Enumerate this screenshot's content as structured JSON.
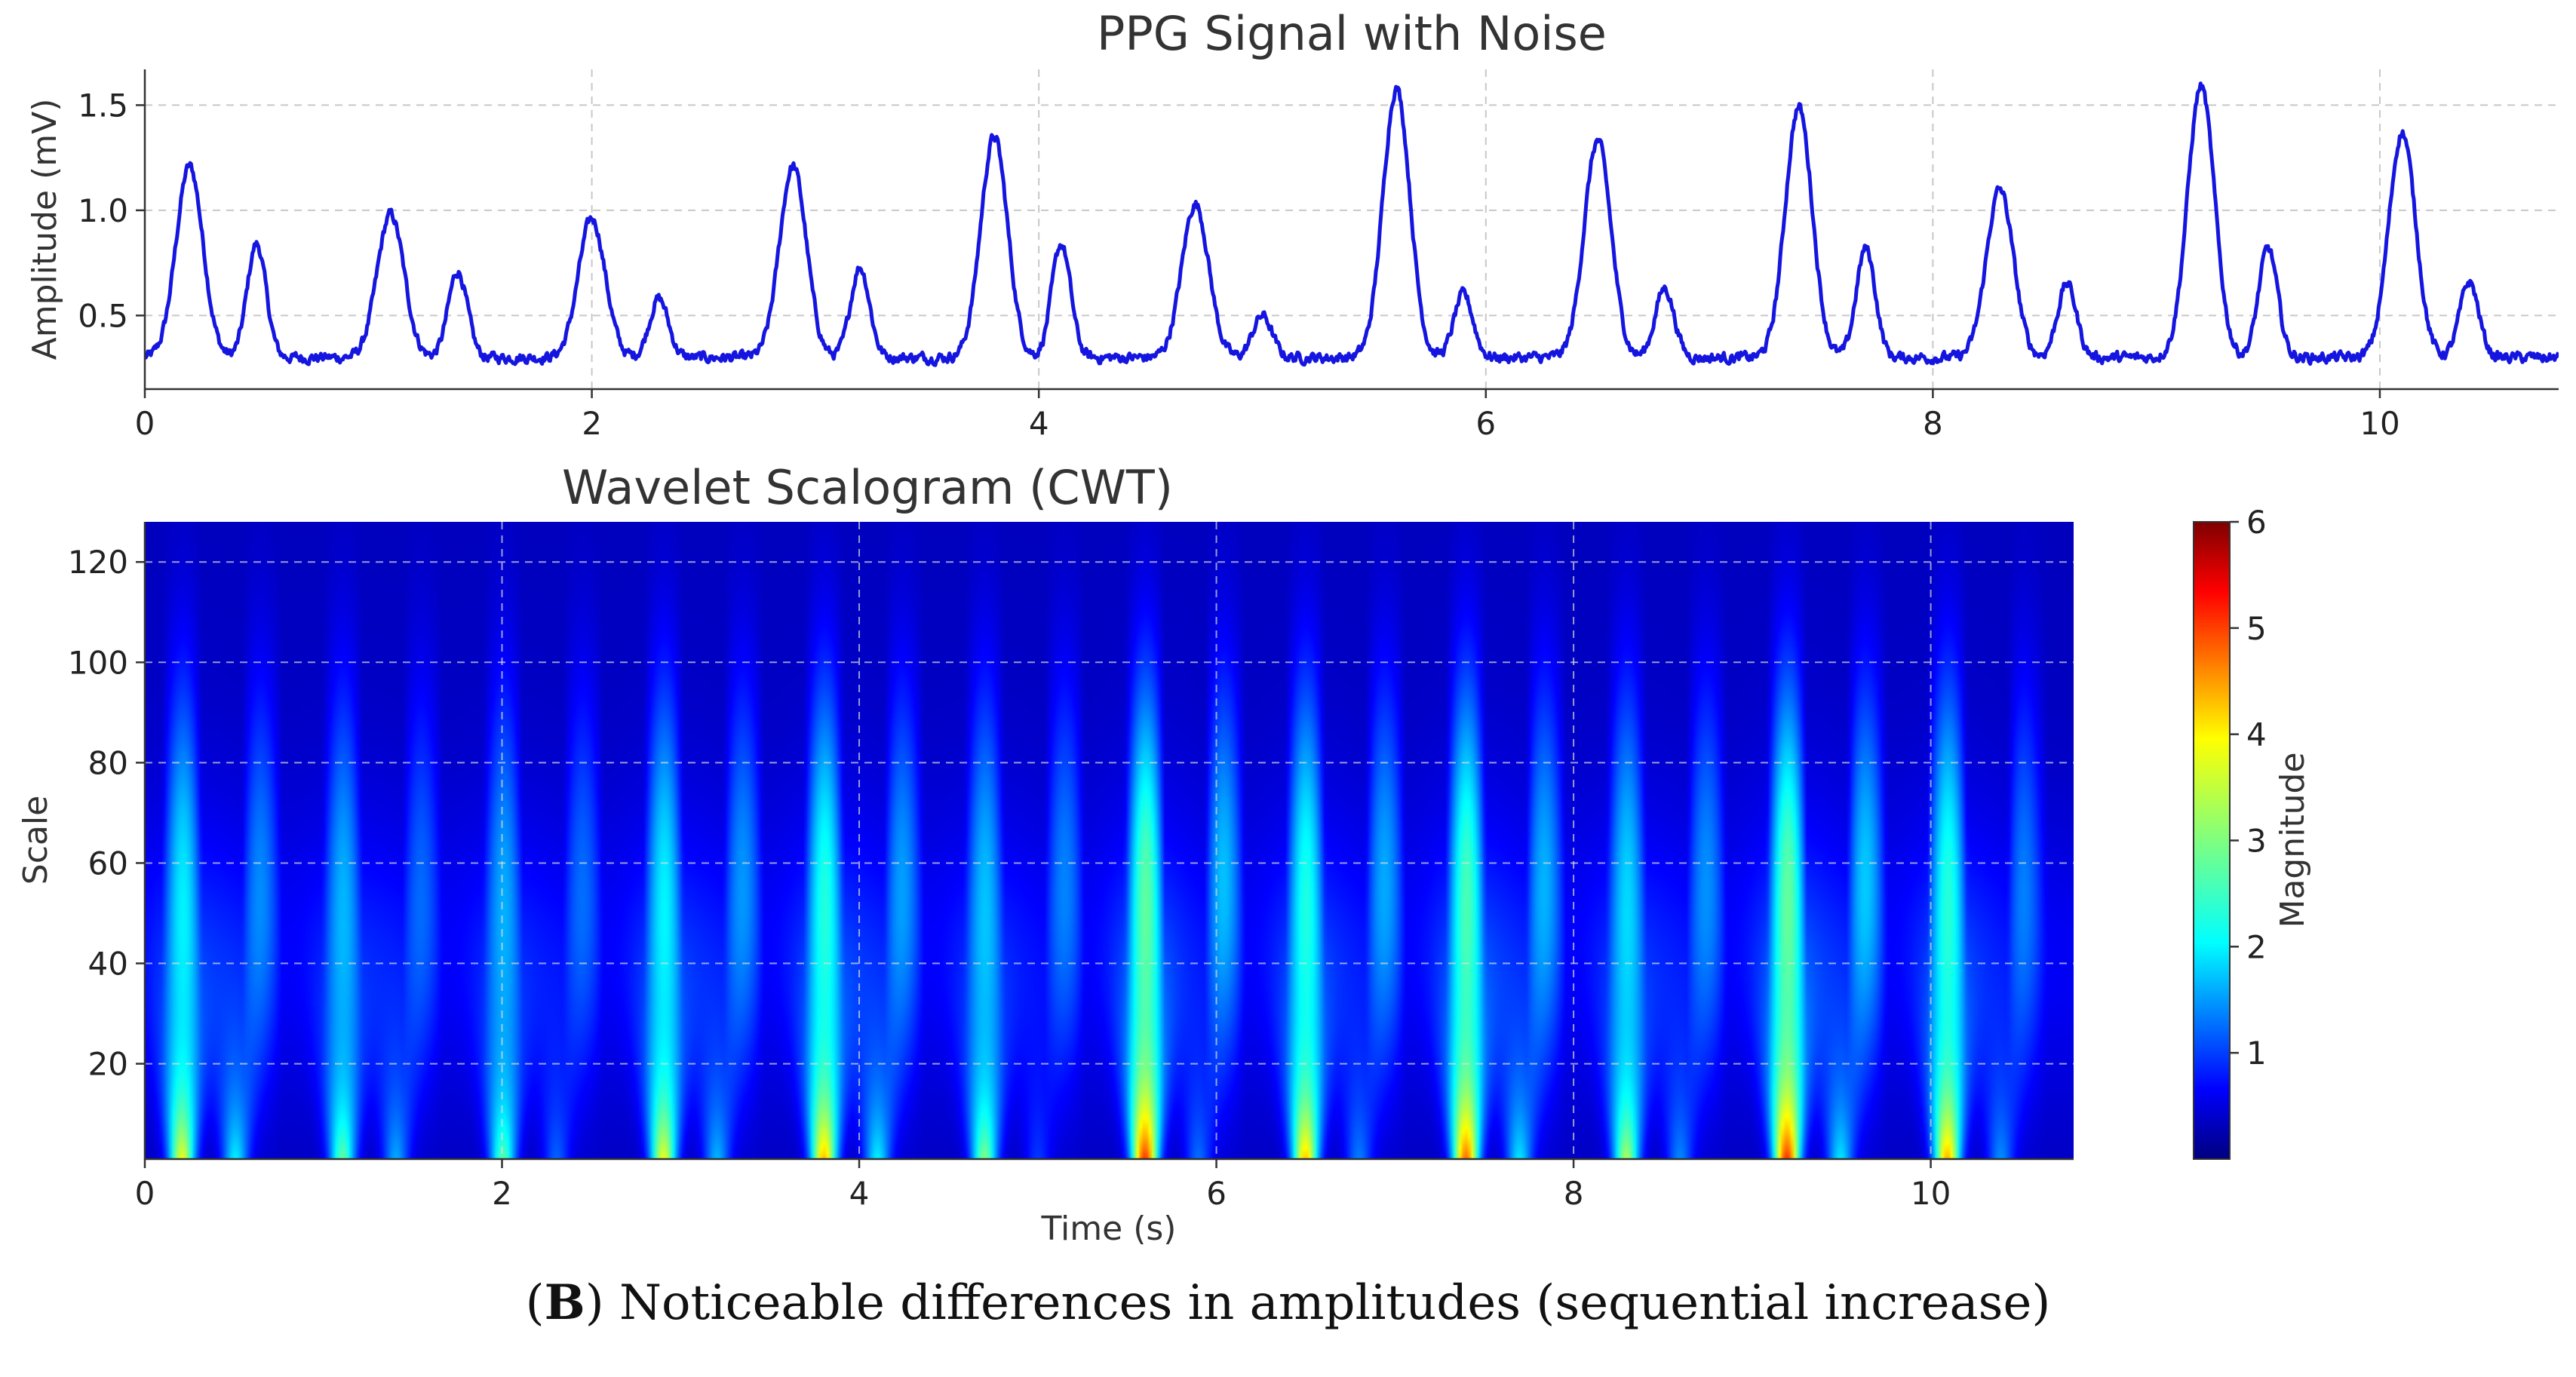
{
  "chart_data": [
    {
      "type": "line",
      "title": "PPG Signal with Noise",
      "xlabel": "",
      "ylabel": "Amplitude (mV)",
      "xlim": [
        0,
        10.8
      ],
      "ylim": [
        0.15,
        1.67
      ],
      "xticks": [
        "0",
        "2",
        "4",
        "6",
        "8",
        "10"
      ],
      "yticks": [
        "0.5",
        "1.0",
        "1.5"
      ],
      "grid": true,
      "color": "#1515e0",
      "baseline": 0.3,
      "beats": [
        {
          "t": 0.2,
          "systolic": 1.21,
          "diastolic": 0.84
        },
        {
          "t": 1.1,
          "systolic": 0.98,
          "diastolic": 0.71
        },
        {
          "t": 2.0,
          "systolic": 0.96,
          "diastolic": 0.58
        },
        {
          "t": 2.9,
          "systolic": 1.21,
          "diastolic": 0.73
        },
        {
          "t": 3.8,
          "systolic": 1.35,
          "diastolic": 0.84
        },
        {
          "t": 4.7,
          "systolic": 1.03,
          "diastolic": 0.5
        },
        {
          "t": 5.6,
          "systolic": 1.58,
          "diastolic": 0.6
        },
        {
          "t": 6.5,
          "systolic": 1.33,
          "diastolic": 0.63
        },
        {
          "t": 7.4,
          "systolic": 1.49,
          "diastolic": 0.82
        },
        {
          "t": 8.3,
          "systolic": 1.1,
          "diastolic": 0.65
        },
        {
          "t": 9.2,
          "systolic": 1.59,
          "diastolic": 0.82
        },
        {
          "t": 10.1,
          "systolic": 1.37,
          "diastolic": 0.66
        }
      ]
    },
    {
      "type": "heatmap",
      "title": "Wavelet Scalogram (CWT)",
      "xlabel": "Time (s)",
      "ylabel": "Scale",
      "xlim": [
        0,
        10.8
      ],
      "ylim": [
        1,
        128
      ],
      "xticks": [
        "0",
        "2",
        "4",
        "6",
        "8",
        "10"
      ],
      "yticks": [
        "20",
        "40",
        "60",
        "80",
        "100",
        "120"
      ],
      "colormap": "jet",
      "colorbar": {
        "label": "Magnitude",
        "range": [
          0,
          6
        ],
        "ticks": [
          "1",
          "2",
          "3",
          "4",
          "5",
          "6"
        ]
      },
      "grid": true
    }
  ],
  "caption": {
    "letter": "B",
    "text": ") Noticeable differences in amplitudes (sequential increase)"
  }
}
